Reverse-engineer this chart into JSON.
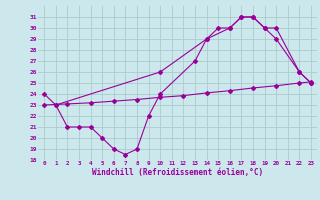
{
  "bg_color": "#cce8ed",
  "line_color": "#990099",
  "grid_color": "#aacccc",
  "xlabel": "Windchill (Refroidissement éolien,°C)",
  "xlim": [
    -0.5,
    23.5
  ],
  "ylim": [
    18,
    32
  ],
  "yticks": [
    18,
    19,
    20,
    21,
    22,
    23,
    24,
    25,
    26,
    27,
    28,
    29,
    30,
    31
  ],
  "xticks": [
    0,
    1,
    2,
    3,
    4,
    5,
    6,
    7,
    8,
    9,
    10,
    11,
    12,
    13,
    14,
    15,
    16,
    17,
    18,
    19,
    20,
    21,
    22,
    23
  ],
  "line1_x": [
    0,
    1,
    2,
    3,
    4,
    5,
    6,
    7,
    8,
    9,
    10,
    13,
    14,
    15,
    16,
    17,
    18,
    19,
    20,
    22,
    23
  ],
  "line1_y": [
    24,
    23,
    21,
    21,
    21,
    20,
    19,
    18.5,
    19,
    22,
    24,
    27,
    29,
    30,
    30,
    31,
    31,
    30,
    29,
    26,
    25
  ],
  "line2_x": [
    0,
    2,
    4,
    6,
    8,
    10,
    12,
    14,
    16,
    18,
    20,
    22,
    23
  ],
  "line2_y": [
    23.0,
    23.1,
    23.2,
    23.35,
    23.5,
    23.7,
    23.85,
    24.1,
    24.3,
    24.55,
    24.75,
    25.0,
    25.1
  ],
  "line3_x": [
    1,
    10,
    14,
    16,
    17,
    18,
    19,
    20,
    22,
    23
  ],
  "line3_y": [
    23,
    26,
    29,
    30,
    31,
    31,
    30,
    30,
    26,
    25
  ]
}
